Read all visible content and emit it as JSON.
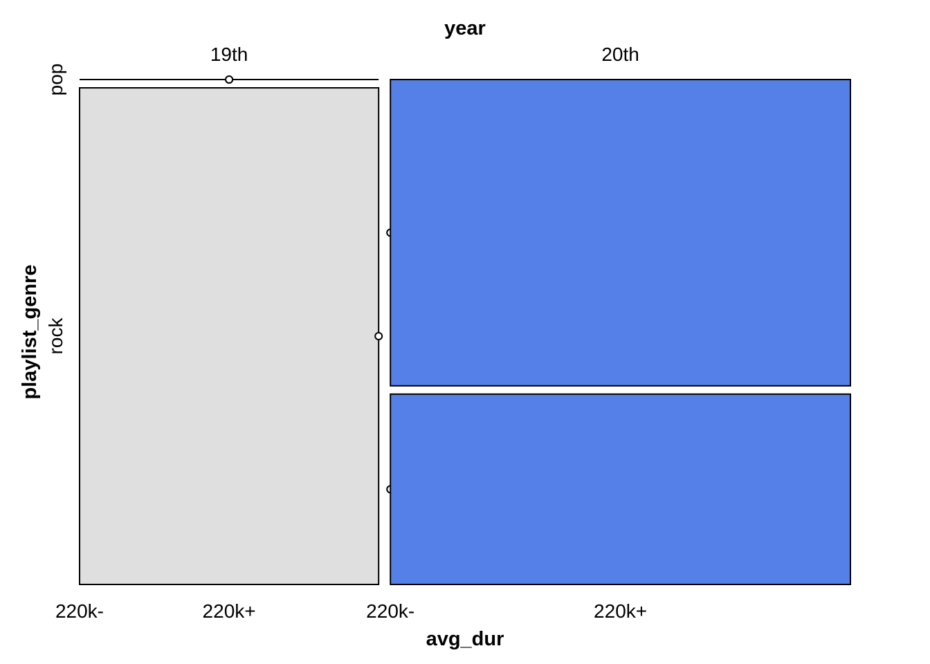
{
  "colors": {
    "background": "#ffffff",
    "outline": "#000000",
    "shaded": "#dfdfdf",
    "highlight": "#5580e8"
  },
  "chart_data": {
    "type": "mosaic",
    "title": "",
    "top_variable": "year",
    "top_levels": [
      "19th",
      "20th"
    ],
    "left_variable": "playlist_genre",
    "left_levels": [
      "pop",
      "rock"
    ],
    "bottom_variable": "avg_dur",
    "bottom_levels": [
      "220k-",
      "220k+"
    ],
    "cells": [
      {
        "year": "19th",
        "playlist_genre": "pop",
        "avg_dur": "220k-",
        "proportion": 0.0,
        "fill": "shaded"
      },
      {
        "year": "19th",
        "playlist_genre": "pop",
        "avg_dur": "220k+",
        "proportion": 0.0,
        "fill": "shaded"
      },
      {
        "year": "19th",
        "playlist_genre": "rock",
        "avg_dur": "220k-",
        "proportion": 0.39,
        "fill": "shaded"
      },
      {
        "year": "19th",
        "playlist_genre": "rock",
        "avg_dur": "220k+",
        "proportion": 0.0,
        "fill": "shaded"
      },
      {
        "year": "20th",
        "playlist_genre": "pop",
        "avg_dur": "220k-",
        "proportion": 0.0,
        "fill": "highlight"
      },
      {
        "year": "20th",
        "playlist_genre": "pop",
        "avg_dur": "220k+",
        "proportion": 0.37,
        "fill": "highlight"
      },
      {
        "year": "20th",
        "playlist_genre": "rock",
        "avg_dur": "220k-",
        "proportion": 0.0,
        "fill": "highlight"
      },
      {
        "year": "20th",
        "playlist_genre": "rock",
        "avg_dur": "220k+",
        "proportion": 0.23,
        "fill": "highlight"
      }
    ]
  }
}
